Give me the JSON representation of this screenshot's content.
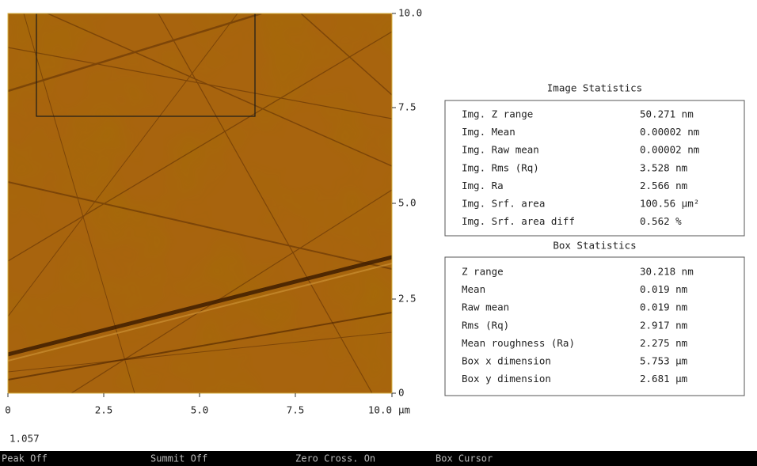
{
  "image_axes": {
    "y_ticks": [
      "10.0",
      "7.5",
      "5.0",
      "2.5",
      "0"
    ],
    "x_ticks": [
      "0",
      "2.5",
      "5.0",
      "7.5",
      "10.0"
    ],
    "x_unit": "µm"
  },
  "image_statistics": {
    "title": "Image Statistics",
    "rows": [
      [
        "Img. Z range",
        "50.271 nm"
      ],
      [
        "Img. Mean",
        "0.00002 nm"
      ],
      [
        "Img. Raw mean",
        "0.00002 nm"
      ],
      [
        "Img. Rms (Rq)",
        "3.528 nm"
      ],
      [
        "Img. Ra",
        "2.566 nm"
      ],
      [
        "Img. Srf. area",
        "100.56 µm²"
      ],
      [
        "Img. Srf. area diff",
        "0.562 %"
      ]
    ]
  },
  "box_statistics": {
    "title": "Box Statistics",
    "rows": [
      [
        "Z range",
        "30.218 nm"
      ],
      [
        "Mean",
        "0.019 nm"
      ],
      [
        "Raw mean",
        "0.019 nm"
      ],
      [
        "Rms (Rq)",
        "2.917 nm"
      ],
      [
        "Mean roughness (Ra)",
        "2.275 nm"
      ],
      [
        "Box x dimension",
        "5.753 µm"
      ],
      [
        "Box y dimension",
        "2.681 µm"
      ]
    ]
  },
  "scale_value": "1.057",
  "status_bar": [
    "Peak Off",
    "Summit Off",
    "Zero Cross. On",
    "Box Cursor"
  ]
}
